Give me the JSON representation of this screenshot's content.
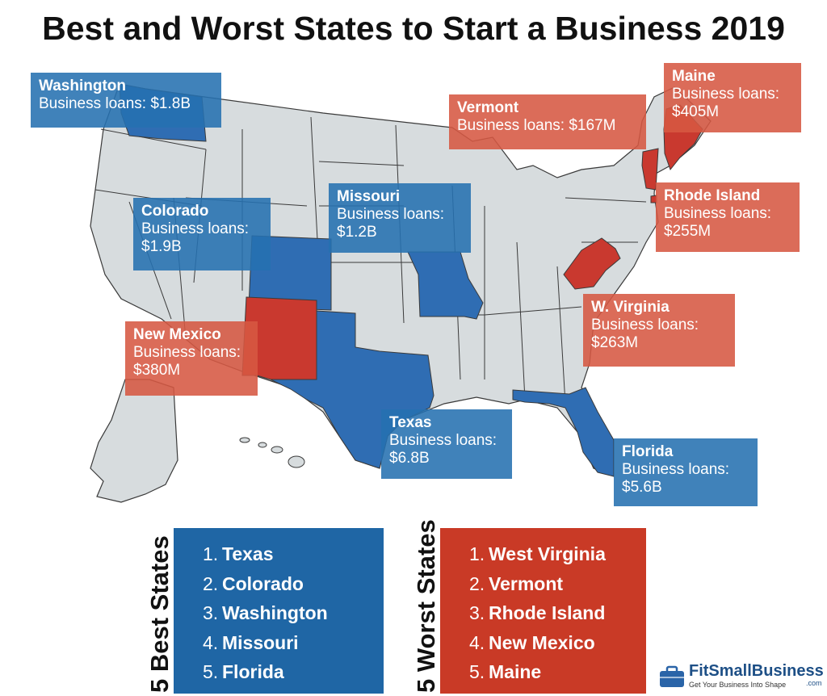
{
  "title": "Best and Worst States to Start a Business 2019",
  "colors": {
    "land": "#d7dcde",
    "border": "#3a3a3a",
    "best": "#2f6db3",
    "worst": "#c9392f",
    "best_box": "#1f66a5",
    "worst_box": "#c93a26"
  },
  "callouts": [
    {
      "state": "Washington",
      "label": "Business loans:",
      "amount": "$1.8B",
      "group": "best"
    },
    {
      "state": "Colorado",
      "label": "Business loans:",
      "amount": "$1.9B",
      "group": "best"
    },
    {
      "state": "Missouri",
      "label": "Business loans:",
      "amount": "$1.2B",
      "group": "best"
    },
    {
      "state": "Texas",
      "label": "Business loans:",
      "amount": "$6.8B",
      "group": "best"
    },
    {
      "state": "Florida",
      "label": "Business loans:",
      "amount": "$5.6B",
      "group": "best"
    },
    {
      "state": "Vermont",
      "label": "Business loans:",
      "amount": "$167M",
      "group": "worst"
    },
    {
      "state": "Maine",
      "label": "Business loans:",
      "amount": "$405M",
      "group": "worst"
    },
    {
      "state": "Rhode Island",
      "label": "Business loans:",
      "amount": "$255M",
      "group": "worst"
    },
    {
      "state": "W. Virginia",
      "label": "Business loans:",
      "amount": "$263M",
      "group": "worst"
    },
    {
      "state": "New Mexico",
      "label": "Business loans:",
      "amount": "$380M",
      "group": "worst"
    }
  ],
  "best_list": {
    "heading": "5 Best States",
    "items": [
      "Texas",
      "Colorado",
      "Washington",
      "Missouri",
      "Florida"
    ]
  },
  "worst_list": {
    "heading": "5 Worst States",
    "items": [
      "West Virginia",
      "Vermont",
      "Rhode Island",
      "New Mexico",
      "Maine"
    ]
  },
  "logo": {
    "name": "FitSmallBusiness",
    "domain": ".com",
    "tagline": "Get Your Business Into Shape"
  }
}
